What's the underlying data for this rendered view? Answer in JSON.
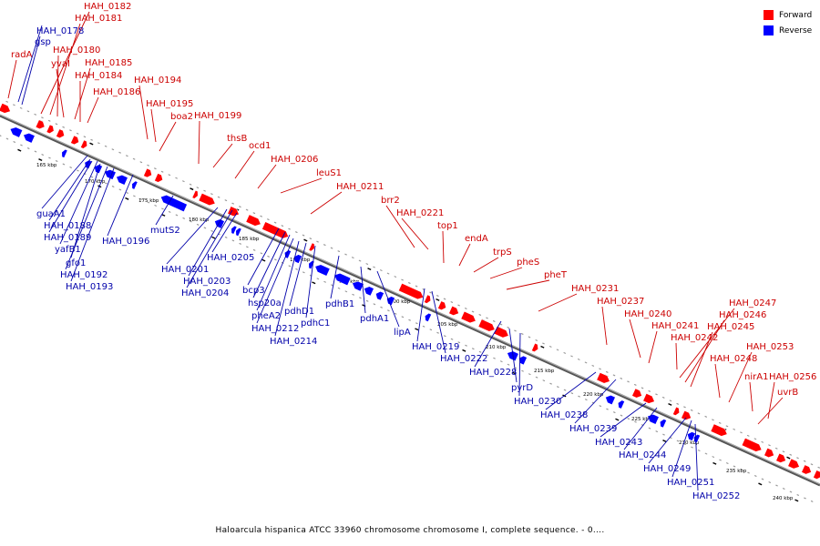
{
  "caption": "Haloarcula hispanica ATCC 33960 chromosome chromosome I, complete sequence. - 0....",
  "legend": [
    {
      "label": "Forward",
      "color": "#ff0000"
    },
    {
      "label": "Reverse",
      "color": "#0000ff"
    }
  ],
  "colors": {
    "forward": "#ff0000",
    "reverse": "#0000ff",
    "backbone": "#777777",
    "label_forward": "#cc0000",
    "label_reverse": "#0000aa"
  },
  "scale_ticks": [
    "165 kbp",
    "170 kbp",
    "175 kbp",
    "180 kbp",
    "185 kbp",
    "190 kbp",
    "195 kbp",
    "200 kbp",
    "205 kbp",
    "210 kbp",
    "215 kbp",
    "220 kbp",
    "225 kbp",
    "230 kbp",
    "235 kbp",
    "240 kbp"
  ],
  "forward_labels": [
    "radA",
    "HAH_0182",
    "HAH_0181",
    "HAH_0180",
    "yvaI",
    "HAH_0185",
    "HAH_0184",
    "HAH_0186",
    "HAH_0194",
    "HAH_0195",
    "boa2",
    "HAH_0199",
    "thsB",
    "ocd1",
    "HAH_0206",
    "leuS1",
    "HAH_0211",
    "brr2",
    "HAH_0221",
    "top1",
    "endA",
    "trpS",
    "pheS",
    "pheT",
    "HAH_0231",
    "HAH_0237",
    "HAH_0240",
    "HAH_0241",
    "HAH_0242",
    "HAH_0247",
    "HAH_0246",
    "HAH_0245",
    "HAH_0248",
    "HAH_0253",
    "nirA1",
    "HAH_0256",
    "uvrB"
  ],
  "reverse_labels": [
    "HAH_0178",
    "gsp",
    "guaA1",
    "HAH_0188",
    "HAH_0189",
    "yafB1",
    "gfo1",
    "HAH_0192",
    "HAH_0193",
    "HAH_0196",
    "mutS2",
    "HAH_0201",
    "HAH_0203",
    "HAH_0204",
    "HAH_0205",
    "bcp3",
    "hsp20a",
    "pheA2",
    "HAH_0212",
    "HAH_0214",
    "pdhD1",
    "pdhC1",
    "pdhB1",
    "pdhA1",
    "lipA",
    "HAH_0219",
    "HAH_0222",
    "HAH_0228",
    "pyrD",
    "HAH_0230",
    "HAH_0238",
    "HAH_0239",
    "HAH_0243",
    "HAH_0244",
    "HAH_0249",
    "HAH_0251",
    "HAH_0252"
  ]
}
